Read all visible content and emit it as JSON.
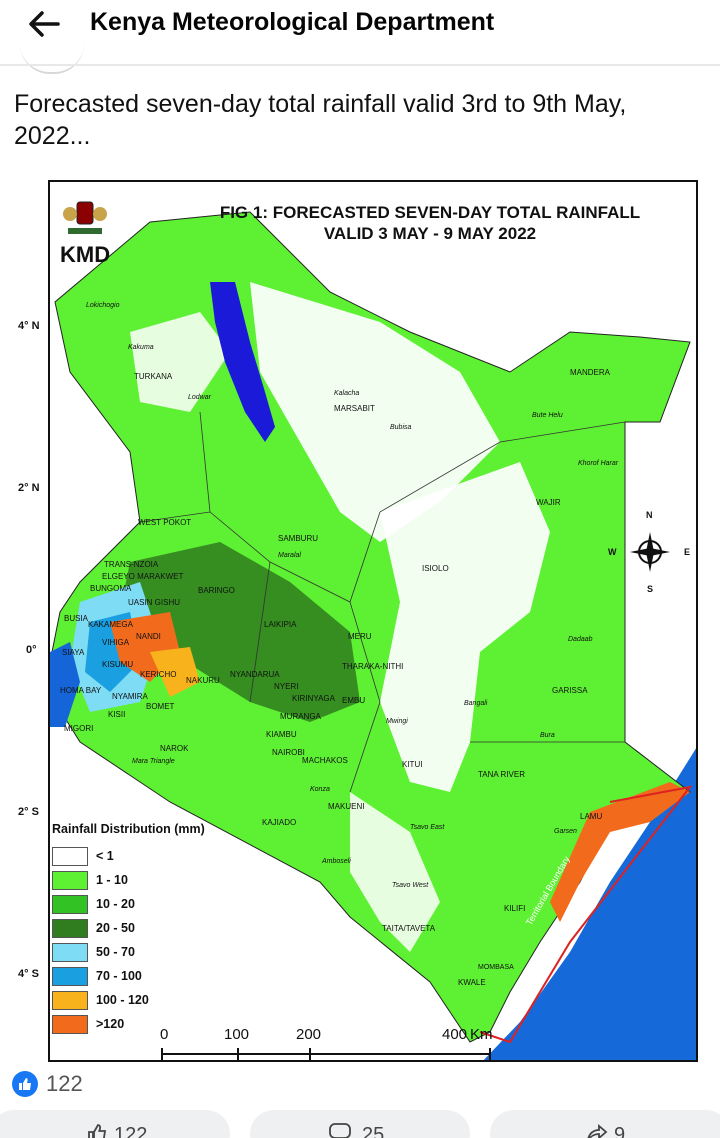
{
  "header": {
    "page_name": "Kenya Meteorological Department"
  },
  "post": {
    "caption": "Forecasted seven-day total rainfall valid 3rd to 9th May, 2022..."
  },
  "figure": {
    "logo_text": "KMD",
    "title_line1": "FIG 1: FORECASTED SEVEN-DAY TOTAL RAINFALL",
    "title_line2": "VALID 3 MAY - 9 MAY 2022",
    "latitudes": [
      "4° N",
      "2° N",
      "0°",
      "2° S",
      "4° S"
    ],
    "compass": {
      "n": "N",
      "s": "S",
      "e": "E",
      "w": "W"
    },
    "labels": {
      "lokichogio": "Lokichogio",
      "kakuma": "Kakuma",
      "turkana": "TURKANA",
      "lodwar": "Lodwar",
      "kalacha": "Kalacha",
      "marsabit": "MARSABIT",
      "bubisa": "Bubisa",
      "mandera": "MANDERA",
      "bute_helu": "Bute Helu",
      "khorof_harar": "Khorof Harar",
      "wajir": "WAJIR",
      "isiolo": "ISIOLO",
      "samburu": "SAMBURU",
      "maralal": "Maralal",
      "west_pokot": "WEST POKOT",
      "trans_nzoia": "TRANS-NZOIA",
      "elgeyo_marakwet": "ELGEYO MARAKWET",
      "bungoma": "BUNGOMA",
      "uasin_gishu": "UASIN GISHU",
      "baringo": "BARINGO",
      "busia": "BUSIA",
      "kakamega": "KAKAMEGA",
      "vihiga": "VIHIGA",
      "nandi": "NANDI",
      "siaya": "SIAYA",
      "kisumu": "KISUMU",
      "kericho": "KERICHO",
      "homa_bay": "HOMA BAY",
      "kisii": "KISII",
      "nyamira": "NYAMIRA",
      "bomet": "BOMET",
      "migori": "MIGORI",
      "laikipia": "LAIKIPIA",
      "meru": "MERU",
      "tharaka_nithi": "THARAKA-NITHI",
      "nakuru": "NAKURU",
      "nyandarua": "NYANDARUA",
      "nyeri": "NYERI",
      "kirinyaga": "KIRINYAGA",
      "embu": "EMBU",
      "muranga": "MURANGA",
      "kiambu": "KIAMBU",
      "nairobi": "NAIROBI",
      "machakos": "MACHAKOS",
      "kitui": "KITUI",
      "mwingi": "Mwingi",
      "bangali": "Bangali",
      "garissa": "GARISSA",
      "dadaab": "Dadaab",
      "bura": "Bura",
      "tana_river": "TANA RIVER",
      "narok": "NAROK",
      "mara_triangle": "Mara Triangle",
      "kajiado": "KAJIADO",
      "konza": "Konza",
      "makueni": "MAKUENI",
      "tsavo_east": "Tsavo East",
      "amboseli": "Amboseli",
      "tsavo_west": "Tsavo West",
      "lamu": "LAMU",
      "garsen": "Garsen",
      "kilifi": "KILIFI",
      "taita_taveta": "TAITA/TAVETA",
      "mombasa": "MOMBASA",
      "kwale": "KWALE",
      "territorial_boundary": "Territorial Boundary"
    },
    "legend": {
      "title": "Rainfall Distribution (mm)",
      "items": [
        {
          "label": "< 1",
          "color": "#ffffff"
        },
        {
          "label": "1 - 10",
          "color": "#5ef033"
        },
        {
          "label": "10 - 20",
          "color": "#33c224"
        },
        {
          "label": "20 - 50",
          "color": "#2f7d1f"
        },
        {
          "label": "50 - 70",
          "color": "#7fdcf5"
        },
        {
          "label": "70 - 100",
          "color": "#1a9fe0"
        },
        {
          "label": "100 - 120",
          "color": "#f8b31c"
        },
        {
          "label": ">120",
          "color": "#f26a1b"
        }
      ]
    },
    "scale": {
      "ticks": [
        "0",
        "100",
        "200",
        "400"
      ],
      "unit": "Km"
    }
  },
  "footer": {
    "reaction_count": "122",
    "like_count": "122",
    "comment_count": "25",
    "share_count": "9"
  }
}
